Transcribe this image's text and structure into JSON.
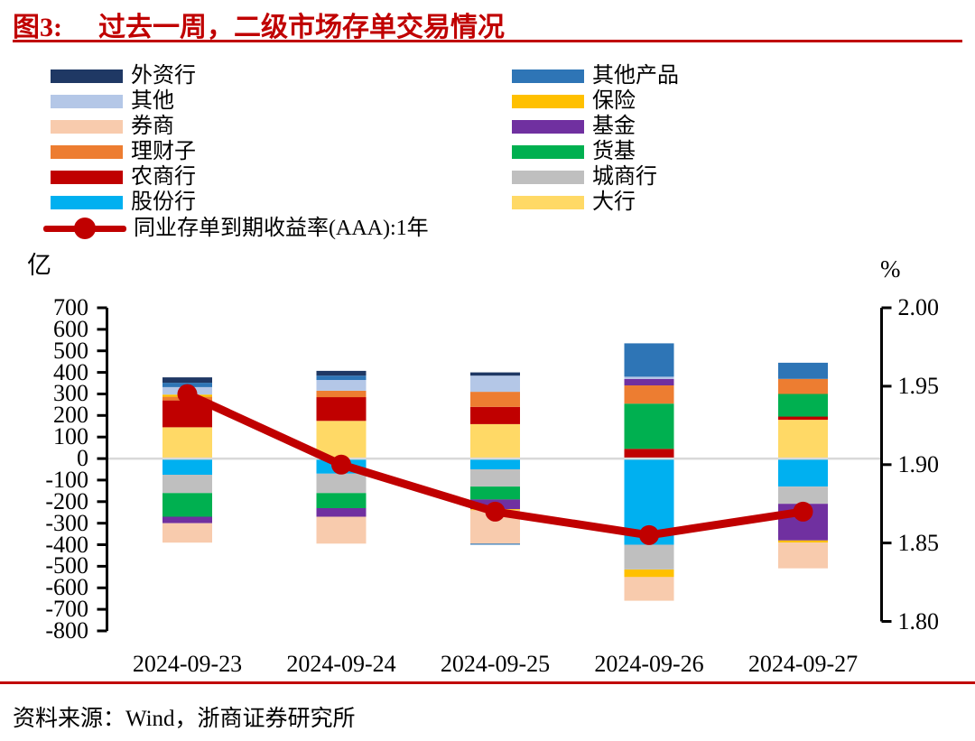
{
  "figure": {
    "number": "图3:",
    "title": "过去一周，二级市场存单交易情况",
    "source_label": "资料来源：",
    "source_text": "Wind，浙商证券研究所",
    "accent_color": "#C00000"
  },
  "legend": {
    "left_column": [
      "外资行",
      "其他",
      "券商",
      "理财子",
      "农商行",
      "股份行"
    ],
    "right_column": [
      "其他产品",
      "保险",
      "基金",
      "货基",
      "城商行",
      "大行"
    ],
    "line_label": "同业存单到期收益率(AAA):1年"
  },
  "colors": {
    "外资行": "#1F3864",
    "其他": "#B4C7E7",
    "券商": "#F8CBAD",
    "理财子": "#ED7D31",
    "农商行": "#C00000",
    "股份行": "#00B0F0",
    "其他产品": "#2E75B6",
    "保险": "#FFC000",
    "基金": "#7030A0",
    "货基": "#00B050",
    "城商行": "#BFBFBF",
    "大行": "#FFD966",
    "line": "#C00000",
    "zero_line": "#D9D9D9",
    "axis": "#000000"
  },
  "chart_data": {
    "type": "bar",
    "subtype": "stacked-bars-with-line-overlay",
    "title": "过去一周，二级市场存单交易情况",
    "categories": [
      "2024-09-23",
      "2024-09-24",
      "2024-09-25",
      "2024-09-26",
      "2024-09-27"
    ],
    "left_axis": {
      "label": "亿",
      "min": -800,
      "max": 700,
      "step": 100,
      "ticks": [
        700,
        600,
        500,
        400,
        300,
        200,
        100,
        0,
        -100,
        -200,
        -300,
        -400,
        -500,
        -600,
        -700,
        -800
      ]
    },
    "right_axis": {
      "label": "%",
      "min": 1.8,
      "max": 2.0,
      "step": 0.05,
      "ticks": [
        "2.00",
        "1.95",
        "1.90",
        "1.85",
        "1.80"
      ]
    },
    "grid": "zero-line-only",
    "legend_position": "top-left-two-columns",
    "series": [
      {
        "name": "大行",
        "values": [
          145,
          175,
          160,
          0,
          180
        ]
      },
      {
        "name": "股份行",
        "values": [
          -75,
          -70,
          -50,
          -400,
          -130
        ]
      },
      {
        "name": "城商行",
        "values": [
          -85,
          -90,
          -80,
          -115,
          -80
        ]
      },
      {
        "name": "农商行",
        "values": [
          125,
          110,
          80,
          45,
          15
        ]
      },
      {
        "name": "货基",
        "values": [
          -110,
          -70,
          -60,
          210,
          105
        ]
      },
      {
        "name": "理财子",
        "values": [
          17,
          30,
          70,
          85,
          70
        ]
      },
      {
        "name": "基金",
        "values": [
          -30,
          -40,
          -45,
          30,
          -170
        ]
      },
      {
        "name": "保险",
        "values": [
          10,
          0,
          -5,
          -35,
          -10
        ]
      },
      {
        "name": "券商",
        "values": [
          -90,
          -125,
          -155,
          -110,
          -120
        ]
      },
      {
        "name": "其他",
        "values": [
          35,
          50,
          75,
          10,
          0
        ]
      },
      {
        "name": "其他产品",
        "values": [
          20,
          20,
          -5,
          155,
          75
        ]
      },
      {
        "name": "外资行",
        "values": [
          25,
          22,
          15,
          0,
          0
        ]
      }
    ],
    "line_series": {
      "name": "同业存单到期收益率(AAA):1年",
      "axis": "right",
      "values": [
        1.945,
        1.9,
        1.87,
        1.855,
        1.87
      ]
    }
  }
}
